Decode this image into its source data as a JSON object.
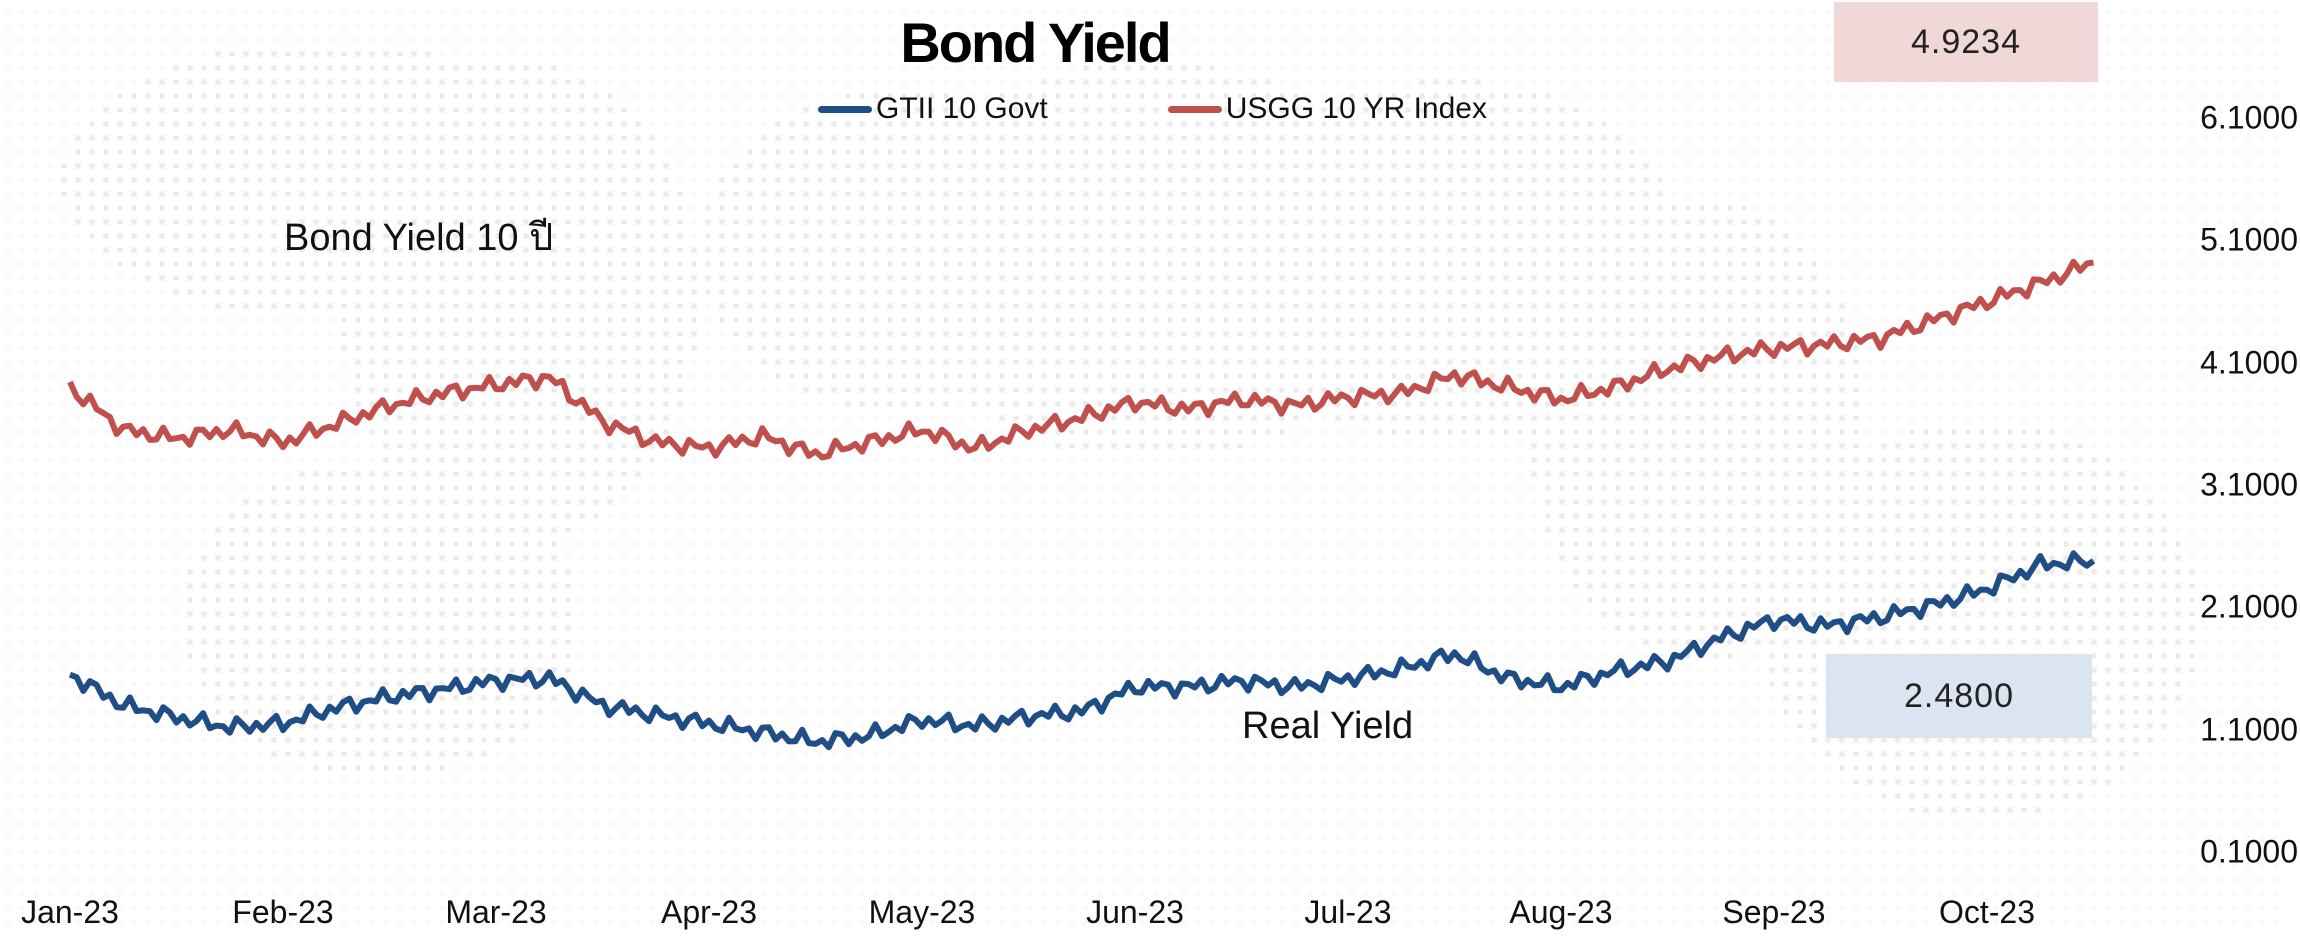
{
  "chart_data": {
    "type": "line",
    "title": "Bond Yield",
    "annotations": {
      "top_left": "Bond Yield 10  ปี",
      "middle": "Real Yield"
    },
    "last_value_boxes": [
      {
        "series": "USGG 10 YR Index",
        "value": "4.9234",
        "color": "#f0d8d8"
      },
      {
        "series": "GTII 10 Govt",
        "value": "2.4800",
        "color": "#dbe5f1"
      }
    ],
    "y_axis": {
      "position": "right",
      "ticks": [
        "6.1000",
        "5.1000",
        "4.1000",
        "3.1000",
        "2.1000",
        "1.1000",
        "0.1000"
      ],
      "ylim": [
        0.1,
        6.1
      ]
    },
    "x_axis": {
      "ticks": [
        "Jan-23",
        "Feb-23",
        "Mar-23",
        "Apr-23",
        "May-23",
        "Jun-23",
        "Jul-23",
        "Aug-23",
        "Sep-23",
        "Oct-23"
      ]
    },
    "legend_placement": "top-center",
    "grid": false,
    "series": [
      {
        "name": "GTII 10 Govt",
        "color": "#1f4e86",
        "x_month_index": [
          0,
          0.25,
          0.5,
          0.75,
          1,
          1.25,
          1.5,
          1.75,
          2,
          2.25,
          2.5,
          2.75,
          3,
          3.25,
          3.5,
          3.75,
          4,
          4.25,
          4.5,
          4.75,
          5,
          5.25,
          5.5,
          5.75,
          6,
          6.25,
          6.5,
          6.75,
          7,
          7.25,
          7.5,
          7.75,
          8,
          8.25,
          8.5,
          8.75,
          9,
          9.25,
          9.5
        ],
        "values": [
          1.55,
          1.3,
          1.2,
          1.12,
          1.15,
          1.28,
          1.37,
          1.43,
          1.5,
          1.52,
          1.3,
          1.22,
          1.15,
          1.08,
          1.0,
          1.05,
          1.18,
          1.13,
          1.21,
          1.25,
          1.45,
          1.45,
          1.5,
          1.45,
          1.52,
          1.6,
          1.72,
          1.52,
          1.45,
          1.58,
          1.66,
          1.85,
          2.0,
          1.95,
          2.02,
          2.12,
          2.25,
          2.45,
          2.48
        ]
      },
      {
        "name": "USGG 10 YR Index",
        "color": "#c0504d",
        "x_month_index": [
          0,
          0.25,
          0.5,
          0.75,
          1,
          1.25,
          1.5,
          1.75,
          2,
          2.25,
          2.5,
          2.75,
          3,
          3.25,
          3.5,
          3.75,
          4,
          4.25,
          4.5,
          4.75,
          5,
          5.25,
          5.5,
          5.75,
          6,
          6.25,
          6.5,
          6.75,
          7,
          7.25,
          7.5,
          7.75,
          8,
          8.25,
          8.5,
          8.75,
          9,
          9.25,
          9.5
        ],
        "values": [
          3.9,
          3.55,
          3.48,
          3.55,
          3.45,
          3.6,
          3.75,
          3.85,
          3.92,
          3.98,
          3.62,
          3.45,
          3.4,
          3.5,
          3.35,
          3.45,
          3.55,
          3.4,
          3.55,
          3.65,
          3.78,
          3.72,
          3.8,
          3.75,
          3.82,
          3.85,
          4.0,
          3.9,
          3.8,
          3.9,
          4.05,
          4.15,
          4.22,
          4.25,
          4.3,
          4.45,
          4.6,
          4.75,
          4.92
        ]
      }
    ]
  }
}
